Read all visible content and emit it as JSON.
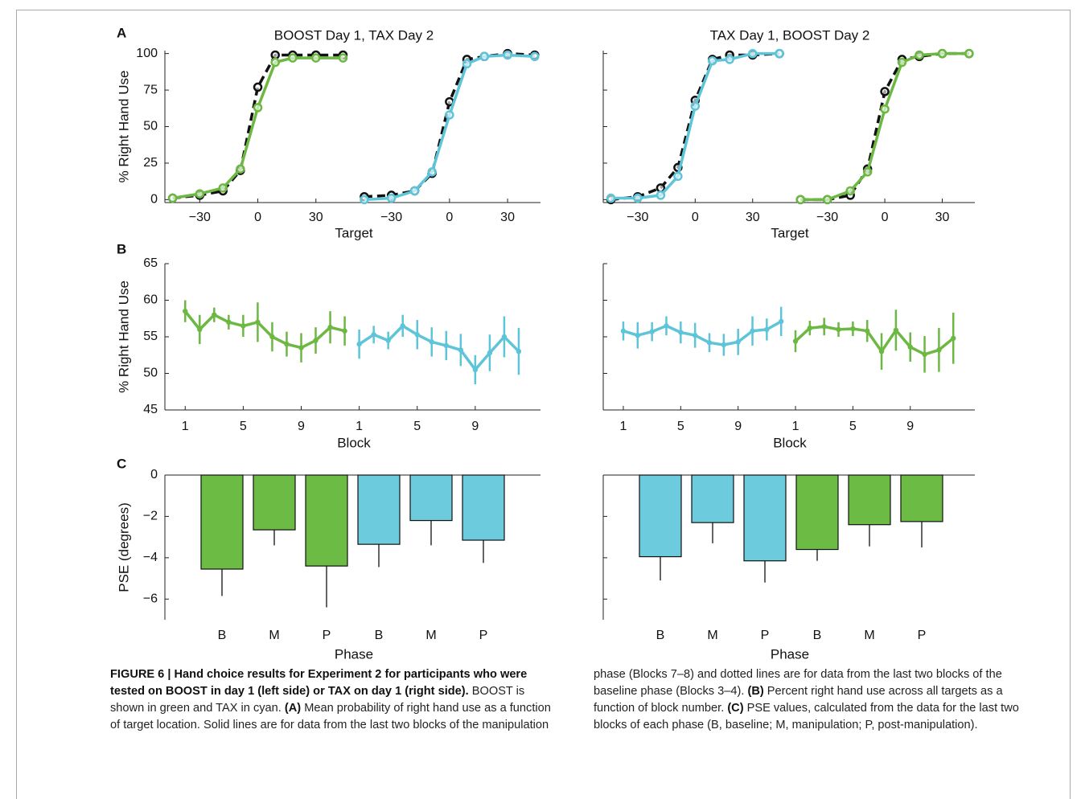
{
  "chart_data": [
    {
      "type": "line",
      "panel_label": "A",
      "title": "BOOST Day 1, TAX Day 2",
      "xlabel": "Target",
      "ylabel": "% Right Hand Use",
      "ylim": [
        -2,
        102
      ],
      "yticks": [
        0,
        25,
        50,
        75,
        100
      ],
      "ytick_labels": true,
      "segments": [
        {
          "xlim": [
            -48,
            51
          ],
          "xticks": [
            {
              "value": -30,
              "label": "−30"
            },
            0,
            30
          ],
          "series": [
            {
              "color": "#111111",
              "dashed": true,
              "x": [
                -44,
                -30,
                -18,
                -9,
                0,
                9,
                18,
                30,
                44
              ],
              "values": [
                1,
                3,
                6,
                20,
                77,
                99,
                99,
                99,
                99
              ]
            },
            {
              "color": "#6cb843",
              "dashed": false,
              "x": [
                -44,
                -30,
                -18,
                -9,
                0,
                9,
                18,
                30,
                44
              ],
              "values": [
                1,
                4,
                8,
                21,
                63,
                94,
                97,
                97,
                97
              ]
            }
          ]
        },
        {
          "xlim": [
            -48,
            47
          ],
          "xticks": [
            {
              "value": -30,
              "label": "−30"
            },
            0,
            30
          ],
          "series": [
            {
              "color": "#111111",
              "dashed": true,
              "x": [
                -44,
                -30,
                -18,
                -9,
                0,
                9,
                18,
                30,
                44
              ],
              "values": [
                2,
                3,
                6,
                18,
                67,
                96,
                98,
                100,
                99
              ]
            },
            {
              "color": "#5ec4d8",
              "dashed": false,
              "x": [
                -44,
                -30,
                -18,
                -9,
                0,
                9,
                18,
                30,
                44
              ],
              "values": [
                0,
                1,
                6,
                19,
                58,
                93,
                98,
                99,
                98
              ]
            }
          ]
        }
      ]
    },
    {
      "type": "line",
      "title": "TAX Day 1, BOOST Day 2",
      "xlabel": "Target",
      "ylim": [
        -2,
        102
      ],
      "yticks": [
        0,
        25,
        50,
        75,
        100
      ],
      "ytick_labels": false,
      "segments": [
        {
          "xlim": [
            -48,
            51
          ],
          "xticks": [
            {
              "value": -30,
              "label": "−30"
            },
            0,
            30
          ],
          "series": [
            {
              "color": "#111111",
              "dashed": true,
              "x": [
                -44,
                -30,
                -18,
                -9,
                0,
                9,
                18,
                30,
                44
              ],
              "values": [
                0,
                2,
                8,
                22,
                68,
                96,
                99,
                99,
                100
              ]
            },
            {
              "color": "#5ec4d8",
              "dashed": false,
              "x": [
                -44,
                -30,
                -18,
                -9,
                0,
                9,
                18,
                30,
                44
              ],
              "values": [
                1,
                1,
                3,
                16,
                64,
                95,
                96,
                100,
                100
              ]
            }
          ]
        },
        {
          "xlim": [
            -48,
            47
          ],
          "xticks": [
            {
              "value": -30,
              "label": "−30"
            },
            0,
            30
          ],
          "series": [
            {
              "color": "#111111",
              "dashed": true,
              "x": [
                -44,
                -30,
                -18,
                -9,
                0,
                9,
                18,
                30,
                44
              ],
              "values": [
                0,
                0,
                3,
                21,
                74,
                96,
                98,
                100,
                100
              ]
            },
            {
              "color": "#6cb843",
              "dashed": false,
              "x": [
                -44,
                -30,
                -18,
                -9,
                0,
                9,
                18,
                30,
                44
              ],
              "values": [
                0,
                0,
                6,
                19,
                62,
                94,
                99,
                100,
                100
              ]
            }
          ]
        }
      ]
    },
    {
      "type": "errorbar",
      "panel_label": "B",
      "xlabel": "Block",
      "ylabel": "% Right Hand Use",
      "ylim": [
        45,
        65
      ],
      "yticks": [
        45,
        50,
        55,
        60,
        65
      ],
      "ytick_labels": true,
      "segments": [
        {
          "xlim": [
            -0.4,
            11.6
          ],
          "xticks": [
            1,
            5,
            9
          ],
          "series": [
            {
              "color": "#6cb843",
              "x": [
                1,
                2,
                3,
                4,
                5,
                6,
                7,
                8,
                9,
                10,
                11,
                12
              ],
              "values": [
                58.5,
                56,
                58,
                57,
                56.5,
                57,
                55,
                54,
                53.5,
                54.5,
                56.3,
                55.8
              ],
              "errors": [
                1.5,
                2,
                1,
                1,
                1.5,
                2.7,
                2,
                1.7,
                2,
                1.8,
                2.2,
                2
              ]
            }
          ]
        },
        {
          "xlim": [
            -0.4,
            13.5
          ],
          "xticks": [
            1,
            5,
            9
          ],
          "series": [
            {
              "color": "#5ec4d8",
              "x": [
                1,
                2,
                3,
                4,
                5,
                6,
                7,
                8,
                9,
                10,
                11,
                12
              ],
              "values": [
                54,
                55.3,
                54.5,
                56.5,
                55.3,
                54.3,
                53.8,
                53.2,
                50.5,
                52.8,
                55,
                53
              ],
              "errors": [
                2,
                1.2,
                1.2,
                1.5,
                2,
                2,
                2,
                2.2,
                2,
                2.5,
                2.8,
                3.2
              ]
            }
          ]
        }
      ]
    },
    {
      "type": "errorbar",
      "xlabel": "Block",
      "ylim": [
        45,
        65
      ],
      "yticks": [
        45,
        50,
        55,
        60,
        65
      ],
      "ytick_labels": false,
      "segments": [
        {
          "xlim": [
            -0.4,
            11.6
          ],
          "xticks": [
            1,
            5,
            9
          ],
          "series": [
            {
              "color": "#5ec4d8",
              "x": [
                1,
                2,
                3,
                4,
                5,
                6,
                7,
                8,
                9,
                10,
                11,
                12
              ],
              "values": [
                55.8,
                55.2,
                55.7,
                56.5,
                55.6,
                55.2,
                54.2,
                53.9,
                54.3,
                55.8,
                56,
                57.1
              ],
              "errors": [
                1.3,
                1.8,
                1.3,
                1.3,
                1.5,
                1.7,
                1.3,
                1.5,
                1.8,
                2,
                1.5,
                2
              ]
            }
          ]
        },
        {
          "xlim": [
            -0.4,
            13.5
          ],
          "xticks": [
            1,
            5,
            9
          ],
          "series": [
            {
              "color": "#6cb843",
              "x": [
                1,
                2,
                3,
                4,
                5,
                6,
                7,
                8,
                9,
                10,
                11,
                12
              ],
              "values": [
                54.4,
                56.2,
                56.4,
                56,
                56.1,
                55.8,
                53,
                55.9,
                53.6,
                52.6,
                53.2,
                54.8
              ],
              "errors": [
                1.5,
                1,
                1.2,
                1,
                1,
                1.5,
                2.5,
                2.8,
                2,
                2.5,
                3,
                3.5
              ]
            }
          ]
        }
      ]
    },
    {
      "type": "bar",
      "panel_label": "C",
      "xlabel": "Phase",
      "ylabel": "PSE (degrees)",
      "ylim": [
        -7,
        0
      ],
      "yticks": [
        0,
        {
          "value": -2,
          "label": "−2"
        },
        {
          "value": -4,
          "label": "−4"
        },
        {
          "value": -6,
          "label": "−6"
        }
      ],
      "ytick_labels": true,
      "categories": [
        "B",
        "M",
        "P",
        "B",
        "M",
        "P"
      ],
      "values": [
        -4.55,
        -2.65,
        -4.4,
        -3.35,
        -2.2,
        -3.15
      ],
      "errors": [
        1.3,
        0.75,
        2.0,
        1.1,
        1.2,
        1.1
      ],
      "colors": [
        "#6cbb45",
        "#6cbb45",
        "#6cbb45",
        "#6ccbdc",
        "#6ccbdc",
        "#6ccbdc"
      ]
    },
    {
      "type": "bar",
      "xlabel": "Phase",
      "ylim": [
        -7,
        0
      ],
      "yticks": [
        0,
        {
          "value": -2,
          "label": "−2"
        },
        {
          "value": -4,
          "label": "−4"
        },
        {
          "value": -6,
          "label": "−6"
        }
      ],
      "ytick_labels": false,
      "categories": [
        "B",
        "M",
        "P",
        "B",
        "M",
        "P"
      ],
      "values": [
        -3.95,
        -2.3,
        -4.15,
        -3.6,
        -2.4,
        -2.25
      ],
      "errors": [
        1.15,
        1.0,
        1.05,
        0.55,
        1.05,
        1.25
      ],
      "colors": [
        "#6ccbdc",
        "#6ccbdc",
        "#6ccbdc",
        "#6cbb45",
        "#6cbb45",
        "#6cbb45"
      ]
    }
  ],
  "caption": [
    {
      "text": "FIGURE 6 | Hand choice results for Experiment 2 for participants who were tested on BOOST in day 1 (left side) or TAX on day 1 (right side).",
      "bold": true
    },
    {
      "text": " BOOST is shown in green and TAX in cyan. ",
      "bold": false
    },
    {
      "text": "(A)",
      "bold": true
    },
    {
      "text": " Mean probability of right hand use as a function of target location. Solid lines are for data from the last two blocks of the manipulation phase (Blocks 7–8) and dotted lines are for data from the last two blocks of the baseline phase (Blocks 3–4). ",
      "bold": false
    },
    {
      "text": "(B)",
      "bold": true
    },
    {
      "text": " Percent right hand use across all targets as a function of block number. ",
      "bold": false
    },
    {
      "text": "(C)",
      "bold": true
    },
    {
      "text": " PSE values, calculated from the data for the last two blocks of each phase (B, baseline; M, manipulation; P, post-manipulation).",
      "bold": false
    }
  ]
}
